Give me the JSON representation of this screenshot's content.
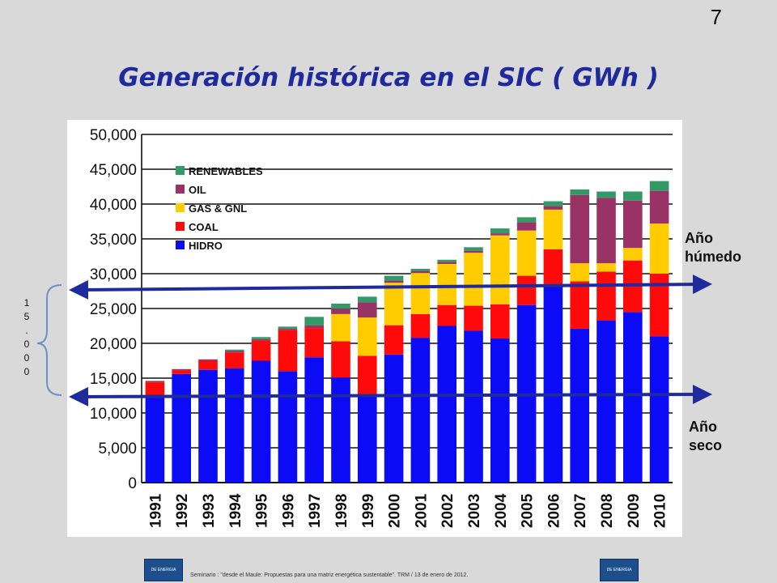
{
  "slide": {
    "number": "7",
    "title": "Generación histórica en el SIC ( GWh )",
    "label_wet_year": "Año húmedo",
    "label_dry_year": "Año seco",
    "bracket_label": [
      "1",
      "5",
      ".",
      "0",
      "0",
      "0"
    ],
    "footer": "Seminario : \"desde el Maule: Propuestas para una matriz energética sustentable\".  TRM  /  13 de enero de 2012.",
    "logo_text": "DE ENERGIA"
  },
  "chart_data": {
    "type": "bar",
    "stacked": true,
    "categories": [
      "1991",
      "1992",
      "1993",
      "1994",
      "1995",
      "1996",
      "1997",
      "1998",
      "1999",
      "2000",
      "2001",
      "2002",
      "2003",
      "2004",
      "2005",
      "2006",
      "2007",
      "2008",
      "2009",
      "2010"
    ],
    "ylim": [
      0,
      50000
    ],
    "yticks": [
      "0",
      "5,000",
      "10,000",
      "15,000",
      "20,000",
      "25,000",
      "30,000",
      "35,000",
      "40,000",
      "45,000",
      "50,000"
    ],
    "grid": true,
    "legend_position": "top-left",
    "series": [
      {
        "name": "HIDRO",
        "color": "#0b0bf5",
        "values": [
          12300,
          15600,
          16200,
          16400,
          17500,
          16000,
          18000,
          15100,
          12600,
          18400,
          20800,
          22500,
          21800,
          20700,
          25500,
          28500,
          22100,
          23300,
          24500,
          21000
        ]
      },
      {
        "name": "COAL",
        "color": "#ff0a0a",
        "values": [
          2100,
          500,
          1300,
          2300,
          2900,
          5900,
          4200,
          5200,
          5600,
          4200,
          3400,
          3000,
          3600,
          4900,
          4200,
          5000,
          6800,
          7000,
          7400,
          9000
        ]
      },
      {
        "name": "GAS & GNL",
        "color": "#ffcc00",
        "values": [
          0,
          0,
          0,
          0,
          0,
          0,
          0,
          3900,
          5500,
          6100,
          5900,
          5900,
          7600,
          9900,
          6500,
          5700,
          2600,
          1200,
          1800,
          7200
        ]
      },
      {
        "name": "OIL",
        "color": "#993366",
        "values": [
          200,
          200,
          200,
          200,
          200,
          200,
          400,
          800,
          2200,
          300,
          300,
          300,
          300,
          300,
          1200,
          500,
          9800,
          9400,
          6800,
          4700
        ]
      },
      {
        "name": "RENEWABLES",
        "color": "#339966",
        "values": [
          0,
          0,
          0,
          200,
          300,
          300,
          1200,
          700,
          800,
          700,
          300,
          300,
          500,
          700,
          700,
          700,
          800,
          900,
          1300,
          1400
        ]
      }
    ],
    "annotations": [
      {
        "text": "Año húmedo",
        "value": 28500
      },
      {
        "text": "Año seco",
        "value": 12600
      }
    ]
  }
}
